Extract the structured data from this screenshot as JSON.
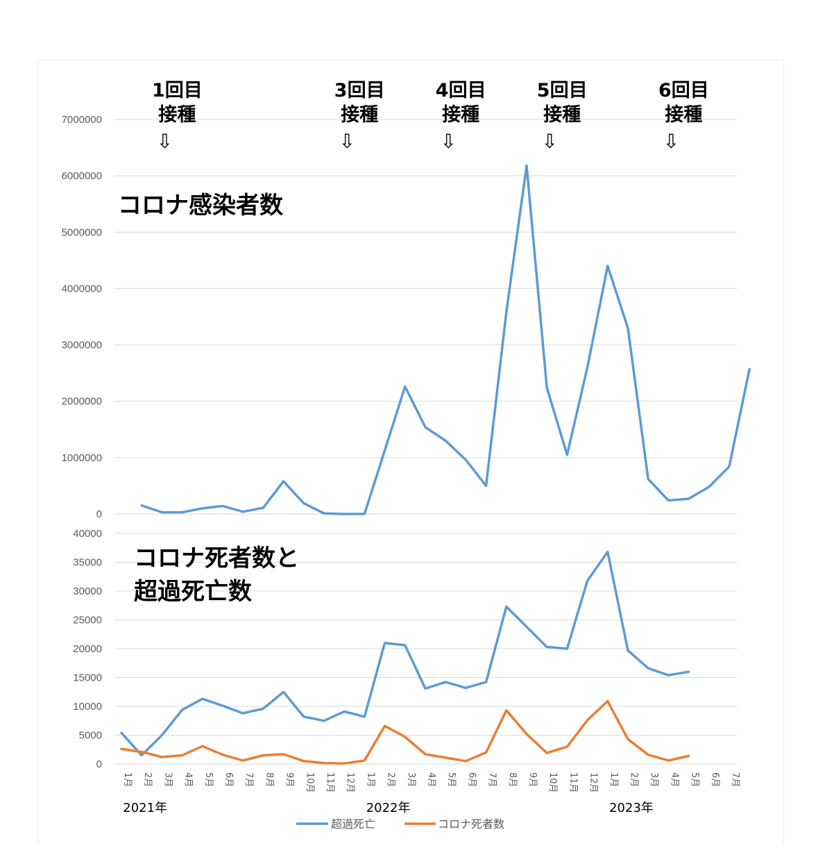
{
  "chart_data": [
    {
      "type": "line",
      "title": "コロナ感染者数",
      "ylim": [
        0,
        7000000
      ],
      "yticks": [
        "0",
        "1000000",
        "2000000",
        "3000000",
        "4000000",
        "5000000",
        "6000000",
        "7000000"
      ],
      "grid": true,
      "series": [
        {
          "color": "#5b9bd5",
          "values": [
            null,
            150000,
            30000,
            30000,
            100000,
            140000,
            40000,
            110000,
            580000,
            190000,
            10000,
            0,
            0,
            1130000,
            2260000,
            1540000,
            1300000,
            960000,
            500000,
            3580000,
            6180000,
            2240000,
            1050000,
            2600000,
            4400000,
            3300000,
            620000,
            240000,
            270000,
            480000,
            840000,
            2570000
          ]
        }
      ],
      "annotations": [
        {
          "line1": "1回目",
          "line2": "接種",
          "arrow": "⇩",
          "month_index": 2
        },
        {
          "line1": "3回目",
          "line2": "接種",
          "arrow": "⇩",
          "month_index": 11
        },
        {
          "line1": "4回目",
          "line2": "接種",
          "arrow": "⇩",
          "month_index": 16
        },
        {
          "line1": "5回目",
          "line2": "接種",
          "arrow": "⇩",
          "month_index": 21
        },
        {
          "line1": "6回目",
          "line2": "接種",
          "arrow": "⇩",
          "month_index": 27
        }
      ]
    },
    {
      "type": "line",
      "title_lines": [
        "コロナ死者数と",
        "超過死亡数"
      ],
      "ylim": [
        0,
        40000
      ],
      "yticks": [
        "0",
        "5000",
        "10000",
        "15000",
        "20000",
        "25000",
        "30000",
        "35000",
        "40000"
      ],
      "grid": true,
      "legend_position": "bottom",
      "categories": [
        "1月",
        "2月",
        "3月",
        "4月",
        "5月",
        "6月",
        "7月",
        "8月",
        "9月",
        "10月",
        "11月",
        "12月",
        "1月",
        "2月",
        "3月",
        "4月",
        "5月",
        "6月",
        "7月",
        "8月",
        "9月",
        "10月",
        "11月",
        "12月",
        "1月",
        "2月",
        "3月",
        "4月",
        "5月",
        "6月",
        "7月"
      ],
      "year_labels": [
        {
          "label": "2021年",
          "month_index": 1
        },
        {
          "label": "2022年",
          "month_index": 13
        },
        {
          "label": "2023年",
          "month_index": 25
        }
      ],
      "series": [
        {
          "name": "超過死亡",
          "color": "#5b9bd5",
          "values": [
            5400,
            1500,
            5000,
            9400,
            11300,
            10100,
            8800,
            9600,
            12500,
            8200,
            7500,
            9100,
            8200,
            21000,
            20600,
            13100,
            14200,
            13200,
            14200,
            27300,
            23800,
            20300,
            20000,
            31800,
            36800,
            19700,
            16600,
            15400,
            16000,
            null,
            null
          ]
        },
        {
          "name": "コロナ死者数",
          "color": "#ed7d31",
          "values": [
            2600,
            2100,
            1200,
            1500,
            3100,
            1600,
            600,
            1500,
            1700,
            500,
            150,
            100,
            600,
            6600,
            4700,
            1700,
            1100,
            500,
            2000,
            9300,
            5200,
            1900,
            3000,
            7600,
            10900,
            4300,
            1600,
            600,
            1400,
            null,
            null
          ]
        }
      ]
    }
  ]
}
